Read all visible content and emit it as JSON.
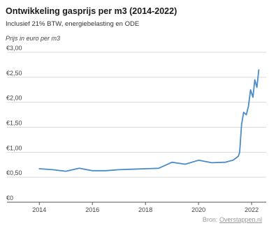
{
  "header": {
    "title": "Ontwikkeling gasprijs per m3 (2014-2022)",
    "subtitle": "Inclusief 21% BTW, energiebelasting en ODE",
    "unit_note": "Prijs in euro per m3"
  },
  "source": {
    "prefix": "Bron:",
    "link": "Overstappen.nl"
  },
  "colors": {
    "line": "#4a8bc9",
    "grid": "#d9d9d9",
    "axis": "#555555"
  },
  "chart_data": {
    "type": "line",
    "title": "Ontwikkeling gasprijs per m3 (2014-2022)",
    "subtitle": "Inclusief 21% BTW, energiebelasting en ODE",
    "xlabel": "",
    "ylabel": "Prijs in euro per m3",
    "xlim": [
      2013.65,
      2022.55
    ],
    "ylim": [
      0,
      3
    ],
    "yticks": [
      0,
      0.5,
      1,
      1.5,
      2,
      2.5,
      3
    ],
    "ytick_labels": [
      "€0",
      "€0,50",
      "€1,00",
      "€1,50",
      "€2,00",
      "€2,50",
      "€3,00"
    ],
    "xticks": [
      2014,
      2016,
      2018,
      2020,
      2022
    ],
    "xtick_labels": [
      "2014",
      "2016",
      "2018",
      "2020",
      "2022"
    ],
    "grid": true,
    "legend": "none",
    "series": [
      {
        "x": [
          2014.0,
          2014.5,
          2015.0,
          2015.5,
          2016.0,
          2016.5,
          2017.0,
          2017.5,
          2018.0,
          2018.5,
          2019.0,
          2019.5,
          2020.0,
          2020.5,
          2021.0,
          2021.3,
          2021.5,
          2021.55,
          2021.62,
          2021.7,
          2021.8,
          2021.88,
          2021.96,
          2022.05,
          2022.12,
          2022.2,
          2022.27
        ],
        "y": [
          0.67,
          0.65,
          0.62,
          0.68,
          0.63,
          0.63,
          0.65,
          0.66,
          0.67,
          0.68,
          0.8,
          0.76,
          0.84,
          0.79,
          0.8,
          0.84,
          0.92,
          1.0,
          1.55,
          1.8,
          1.75,
          1.92,
          2.25,
          2.1,
          2.45,
          2.3,
          2.65
        ]
      }
    ]
  }
}
